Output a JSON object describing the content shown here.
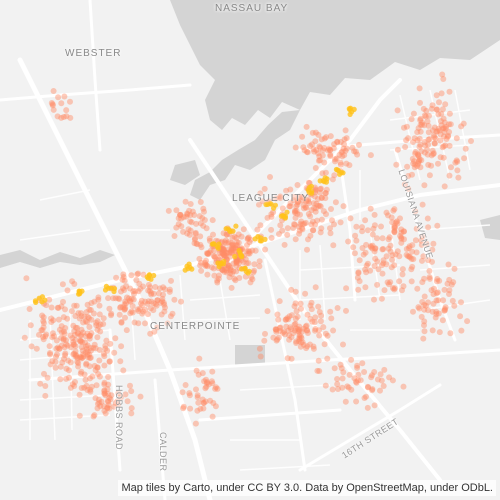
{
  "map": {
    "places": [
      {
        "id": "nassau-bay",
        "label": "NASSAU BAY"
      },
      {
        "id": "webster",
        "label": "WEBSTER"
      },
      {
        "id": "league-city",
        "label": "LEAGUE CITY"
      },
      {
        "id": "centerpointe",
        "label": "CENTERPOINTE"
      }
    ],
    "streets": [
      {
        "id": "louisiana-avenue",
        "label": "LOUISIANA AVENUE"
      },
      {
        "id": "hobbs-road",
        "label": "HOBBS ROAD"
      },
      {
        "id": "calder",
        "label": "CALDER"
      },
      {
        "id": "16th-street",
        "label": "16TH STREET"
      }
    ],
    "point_color": "#ff8c66",
    "hot_color": "#ffc21a",
    "water_color": "#d4d4d4",
    "land_color": "#f2f2f2",
    "road_color": "#ffffff"
  },
  "attribution": "Map tiles by Carto, under CC BY 3.0. Data by OpenStreetMap, under ODbL."
}
